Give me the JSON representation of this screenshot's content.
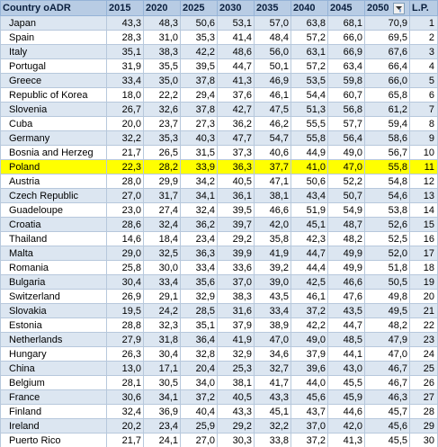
{
  "header": {
    "country": "Country oADR",
    "years": [
      "2015",
      "2020",
      "2025",
      "2030",
      "2035",
      "2040",
      "2045",
      "2050"
    ],
    "lp": "L.P."
  },
  "rows": [
    {
      "country": "Japan",
      "values": [
        "43,3",
        "48,3",
        "50,6",
        "53,1",
        "57,0",
        "63,8",
        "68,1",
        "70,9"
      ],
      "lp": "1"
    },
    {
      "country": "Spain",
      "values": [
        "28,3",
        "31,0",
        "35,3",
        "41,4",
        "48,4",
        "57,2",
        "66,0",
        "69,5"
      ],
      "lp": "2"
    },
    {
      "country": "Italy",
      "values": [
        "35,1",
        "38,3",
        "42,2",
        "48,6",
        "56,0",
        "63,1",
        "66,9",
        "67,6"
      ],
      "lp": "3"
    },
    {
      "country": "Portugal",
      "values": [
        "31,9",
        "35,5",
        "39,5",
        "44,7",
        "50,1",
        "57,2",
        "63,4",
        "66,4"
      ],
      "lp": "4"
    },
    {
      "country": "Greece",
      "values": [
        "33,4",
        "35,0",
        "37,8",
        "41,3",
        "46,9",
        "53,5",
        "59,8",
        "66,0"
      ],
      "lp": "5"
    },
    {
      "country": "Republic of Korea",
      "values": [
        "18,0",
        "22,2",
        "29,4",
        "37,6",
        "46,1",
        "54,4",
        "60,7",
        "65,8"
      ],
      "lp": "6"
    },
    {
      "country": "Slovenia",
      "values": [
        "26,7",
        "32,6",
        "37,8",
        "42,7",
        "47,5",
        "51,3",
        "56,8",
        "61,2"
      ],
      "lp": "7"
    },
    {
      "country": "Cuba",
      "values": [
        "20,0",
        "23,7",
        "27,3",
        "36,2",
        "46,2",
        "55,5",
        "57,7",
        "59,4"
      ],
      "lp": "8"
    },
    {
      "country": "Germany",
      "values": [
        "32,2",
        "35,3",
        "40,3",
        "47,7",
        "54,7",
        "55,8",
        "56,4",
        "58,6"
      ],
      "lp": "9"
    },
    {
      "country": "Bosnia and Herzeg",
      "values": [
        "21,7",
        "26,5",
        "31,5",
        "37,3",
        "40,6",
        "44,9",
        "49,0",
        "56,7"
      ],
      "lp": "10"
    },
    {
      "country": "Poland",
      "values": [
        "22,3",
        "28,2",
        "33,9",
        "36,3",
        "37,7",
        "41,0",
        "47,0",
        "55,8"
      ],
      "lp": "11"
    },
    {
      "country": "Austria",
      "values": [
        "28,0",
        "29,9",
        "34,2",
        "40,5",
        "47,1",
        "50,6",
        "52,2",
        "54,8"
      ],
      "lp": "12"
    },
    {
      "country": "Czech Republic",
      "values": [
        "27,0",
        "31,7",
        "34,1",
        "36,1",
        "38,1",
        "43,4",
        "50,7",
        "54,6"
      ],
      "lp": "13"
    },
    {
      "country": "Guadeloupe",
      "values": [
        "23,0",
        "27,4",
        "32,4",
        "39,5",
        "46,6",
        "51,9",
        "54,9",
        "53,8"
      ],
      "lp": "14"
    },
    {
      "country": "Croatia",
      "values": [
        "28,6",
        "32,4",
        "36,2",
        "39,7",
        "42,0",
        "45,1",
        "48,7",
        "52,6"
      ],
      "lp": "15"
    },
    {
      "country": "Thailand",
      "values": [
        "14,6",
        "18,4",
        "23,4",
        "29,2",
        "35,8",
        "42,3",
        "48,2",
        "52,5"
      ],
      "lp": "16"
    },
    {
      "country": "Malta",
      "values": [
        "29,0",
        "32,5",
        "36,3",
        "39,9",
        "41,9",
        "44,7",
        "49,9",
        "52,0"
      ],
      "lp": "17"
    },
    {
      "country": "Romania",
      "values": [
        "25,8",
        "30,0",
        "33,4",
        "33,6",
        "39,2",
        "44,4",
        "49,9",
        "51,8"
      ],
      "lp": "18"
    },
    {
      "country": "Bulgaria",
      "values": [
        "30,4",
        "33,4",
        "35,6",
        "37,0",
        "39,0",
        "42,5",
        "46,6",
        "50,5"
      ],
      "lp": "19"
    },
    {
      "country": "Switzerland",
      "values": [
        "26,9",
        "29,1",
        "32,9",
        "38,3",
        "43,5",
        "46,1",
        "47,6",
        "49,8"
      ],
      "lp": "20"
    },
    {
      "country": "Slovakia",
      "values": [
        "19,5",
        "24,2",
        "28,5",
        "31,6",
        "33,4",
        "37,2",
        "43,5",
        "49,5"
      ],
      "lp": "21"
    },
    {
      "country": "Estonia",
      "values": [
        "28,8",
        "32,3",
        "35,1",
        "37,9",
        "38,9",
        "42,2",
        "44,7",
        "48,2"
      ],
      "lp": "22"
    },
    {
      "country": "Netherlands",
      "values": [
        "27,9",
        "31,8",
        "36,4",
        "41,9",
        "47,0",
        "49,0",
        "48,5",
        "47,9"
      ],
      "lp": "23"
    },
    {
      "country": "Hungary",
      "values": [
        "26,3",
        "30,4",
        "32,8",
        "32,9",
        "34,6",
        "37,9",
        "44,1",
        "47,0"
      ],
      "lp": "24"
    },
    {
      "country": "China",
      "values": [
        "13,0",
        "17,1",
        "20,4",
        "25,3",
        "32,7",
        "39,6",
        "43,0",
        "46,7"
      ],
      "lp": "25"
    },
    {
      "country": "Belgium",
      "values": [
        "28,1",
        "30,5",
        "34,0",
        "38,1",
        "41,7",
        "44,0",
        "45,5",
        "46,7"
      ],
      "lp": "26"
    },
    {
      "country": "France",
      "values": [
        "30,6",
        "34,1",
        "37,2",
        "40,5",
        "43,3",
        "45,6",
        "45,9",
        "46,3"
      ],
      "lp": "27"
    },
    {
      "country": "Finland",
      "values": [
        "32,4",
        "36,9",
        "40,4",
        "43,3",
        "45,1",
        "43,7",
        "44,6",
        "45,7"
      ],
      "lp": "28"
    },
    {
      "country": "Ireland",
      "values": [
        "20,2",
        "23,4",
        "25,9",
        "29,2",
        "32,2",
        "37,0",
        "42,0",
        "45,6"
      ],
      "lp": "29"
    },
    {
      "country": "Puerto Rico",
      "values": [
        "21,7",
        "24,1",
        "27,0",
        "30,3",
        "33,8",
        "37,2",
        "41,3",
        "45,5"
      ],
      "lp": "30"
    }
  ],
  "highlight_row": "Poland",
  "colors": {
    "header_bg": "#b8cce4",
    "band_bg": "#dce6f1",
    "highlight_bg": "#ffff00",
    "grid_line": "#b7c8dc"
  },
  "icons": {
    "filter": "sort-filter-dropdown-icon"
  }
}
